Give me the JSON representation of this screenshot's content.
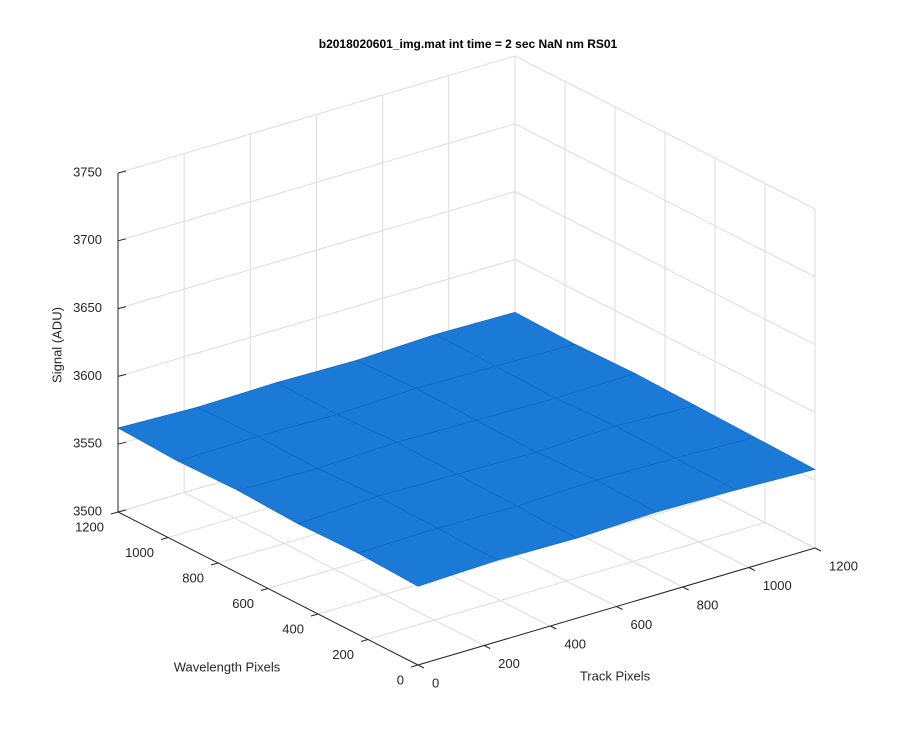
{
  "chart_data": {
    "type": "surface",
    "title": "b2018020601_img.mat int time = 2 sec  NaN nm RS01",
    "xlabel": "Track Pixels",
    "ylabel": "Wavelength Pixels",
    "zlabel": "Signal (ADU)",
    "x": [
      0,
      240,
      480,
      720,
      960,
      1200
    ],
    "y": [
      0,
      240,
      480,
      720,
      960,
      1200
    ],
    "z": [
      [
        3558,
        3560,
        3559,
        3561,
        3560,
        3558
      ],
      [
        3560,
        3561,
        3560,
        3562,
        3561,
        3559
      ],
      [
        3559,
        3562,
        3561,
        3560,
        3562,
        3560
      ],
      [
        3561,
        3560,
        3562,
        3561,
        3560,
        3561
      ],
      [
        3560,
        3561,
        3560,
        3562,
        3561,
        3560
      ],
      [
        3562,
        3560,
        3561,
        3560,
        3562,
        3561
      ]
    ],
    "color": "#1a7ad6",
    "xlim": [
      0,
      1200
    ],
    "ylim": [
      0,
      1200
    ],
    "zlim": [
      3500,
      3750
    ],
    "xticks": [
      0,
      200,
      400,
      600,
      800,
      1000,
      1200
    ],
    "yticks": [
      0,
      200,
      400,
      600,
      800,
      1000,
      1200
    ],
    "zticks": [
      3500,
      3550,
      3600,
      3650,
      3700,
      3750
    ],
    "grid": true
  }
}
